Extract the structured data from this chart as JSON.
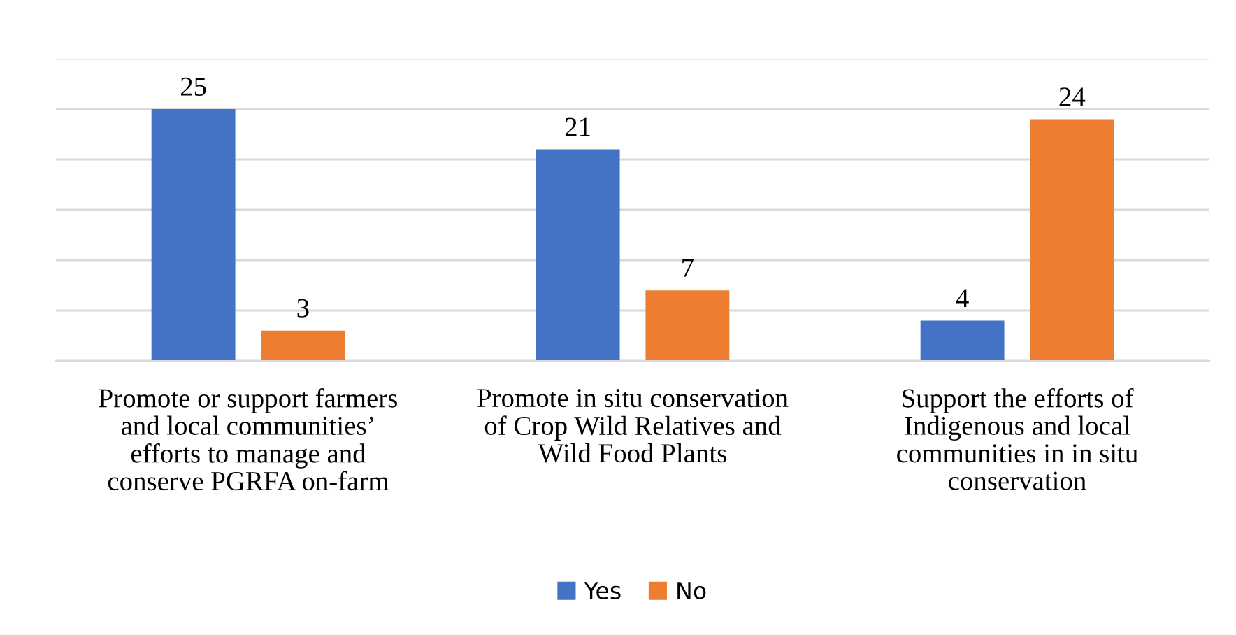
{
  "chart_data": {
    "type": "bar",
    "categories": [
      "Promote or support farmers\nand local communities’\nefforts to manage and\nconserve PGRFA on-farm",
      "Promote in situ conservation\nof Crop Wild Relatives and\nWild Food Plants",
      "Support the efforts of\nIndigenous and local\ncommunities in in situ\nconservation"
    ],
    "series": [
      {
        "name": "Yes",
        "color": "#4472c4",
        "values": [
          25,
          21,
          4
        ]
      },
      {
        "name": "No",
        "color": "#ed7d31",
        "values": [
          3,
          7,
          24
        ]
      }
    ],
    "ylim": [
      0,
      30
    ],
    "yticks": [
      {
        "value": 0,
        "label": null
      },
      {
        "value": 5,
        "label": null
      },
      {
        "value": 10,
        "label": null
      },
      {
        "value": 15,
        "label": null
      },
      {
        "value": 20,
        "label": null
      },
      {
        "value": 25,
        "label": null
      },
      {
        "value": 30,
        "label": null
      }
    ],
    "tick_labels": "x",
    "grid": "y",
    "legend": "bottom",
    "data_labels": true
  }
}
